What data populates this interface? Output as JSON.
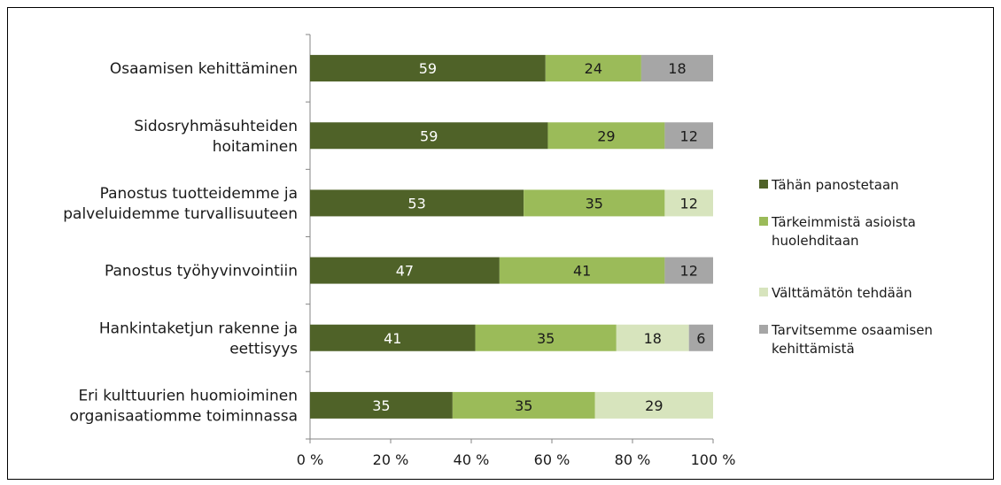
{
  "chart_data": {
    "type": "bar",
    "orientation": "horizontal",
    "stacking": "percent",
    "categories": [
      [
        "Osaamisen kehittäminen"
      ],
      [
        "Sidosryhmäsuhteiden",
        "hoitaminen"
      ],
      [
        "Panostus tuotteidemme ja",
        "palveluidemme turvallisuuteen"
      ],
      [
        "Panostus työhyvinvointiin"
      ],
      [
        "Hankintaketjun rakenne ja",
        "eettisyys"
      ],
      [
        "Eri kulttuurien huomioiminen",
        "organisaatiomme toiminnassa"
      ]
    ],
    "series": [
      {
        "name": "Tähän panostetaan",
        "legend_lines": [
          "Tähän panostetaan"
        ],
        "color": "#4f6228",
        "label_color": "#ffffff",
        "values": [
          59,
          59,
          53,
          47,
          41,
          35
        ]
      },
      {
        "name": "Tärkeimmistä asioista huolehditaan",
        "legend_lines": [
          "Tärkeimmistä asioista",
          "huolehditaan"
        ],
        "color": "#9bbb59",
        "label_color": "#1a1a1a",
        "values": [
          24,
          29,
          35,
          41,
          35,
          35
        ]
      },
      {
        "name": "Välttämätön tehdään",
        "legend_lines": [
          "Välttämätön tehdään"
        ],
        "color": "#d7e4bd",
        "label_color": "#1a1a1a",
        "values": [
          0,
          0,
          12,
          0,
          18,
          29
        ]
      },
      {
        "name": "Tarvitsemme osaamisen kehittämistä",
        "legend_lines": [
          "Tarvitsemme osaamisen",
          "kehittämistä"
        ],
        "color": "#a6a6a6",
        "label_color": "#1a1a1a",
        "values": [
          18,
          12,
          0,
          12,
          6,
          0
        ]
      }
    ],
    "x_ticks": [
      "0 %",
      "20 %",
      "40 %",
      "60 %",
      "80 %",
      "100 %"
    ],
    "xlim": [
      0,
      100
    ],
    "grid": false,
    "legend_position": "right",
    "title": "",
    "xlabel": "",
    "ylabel": ""
  }
}
